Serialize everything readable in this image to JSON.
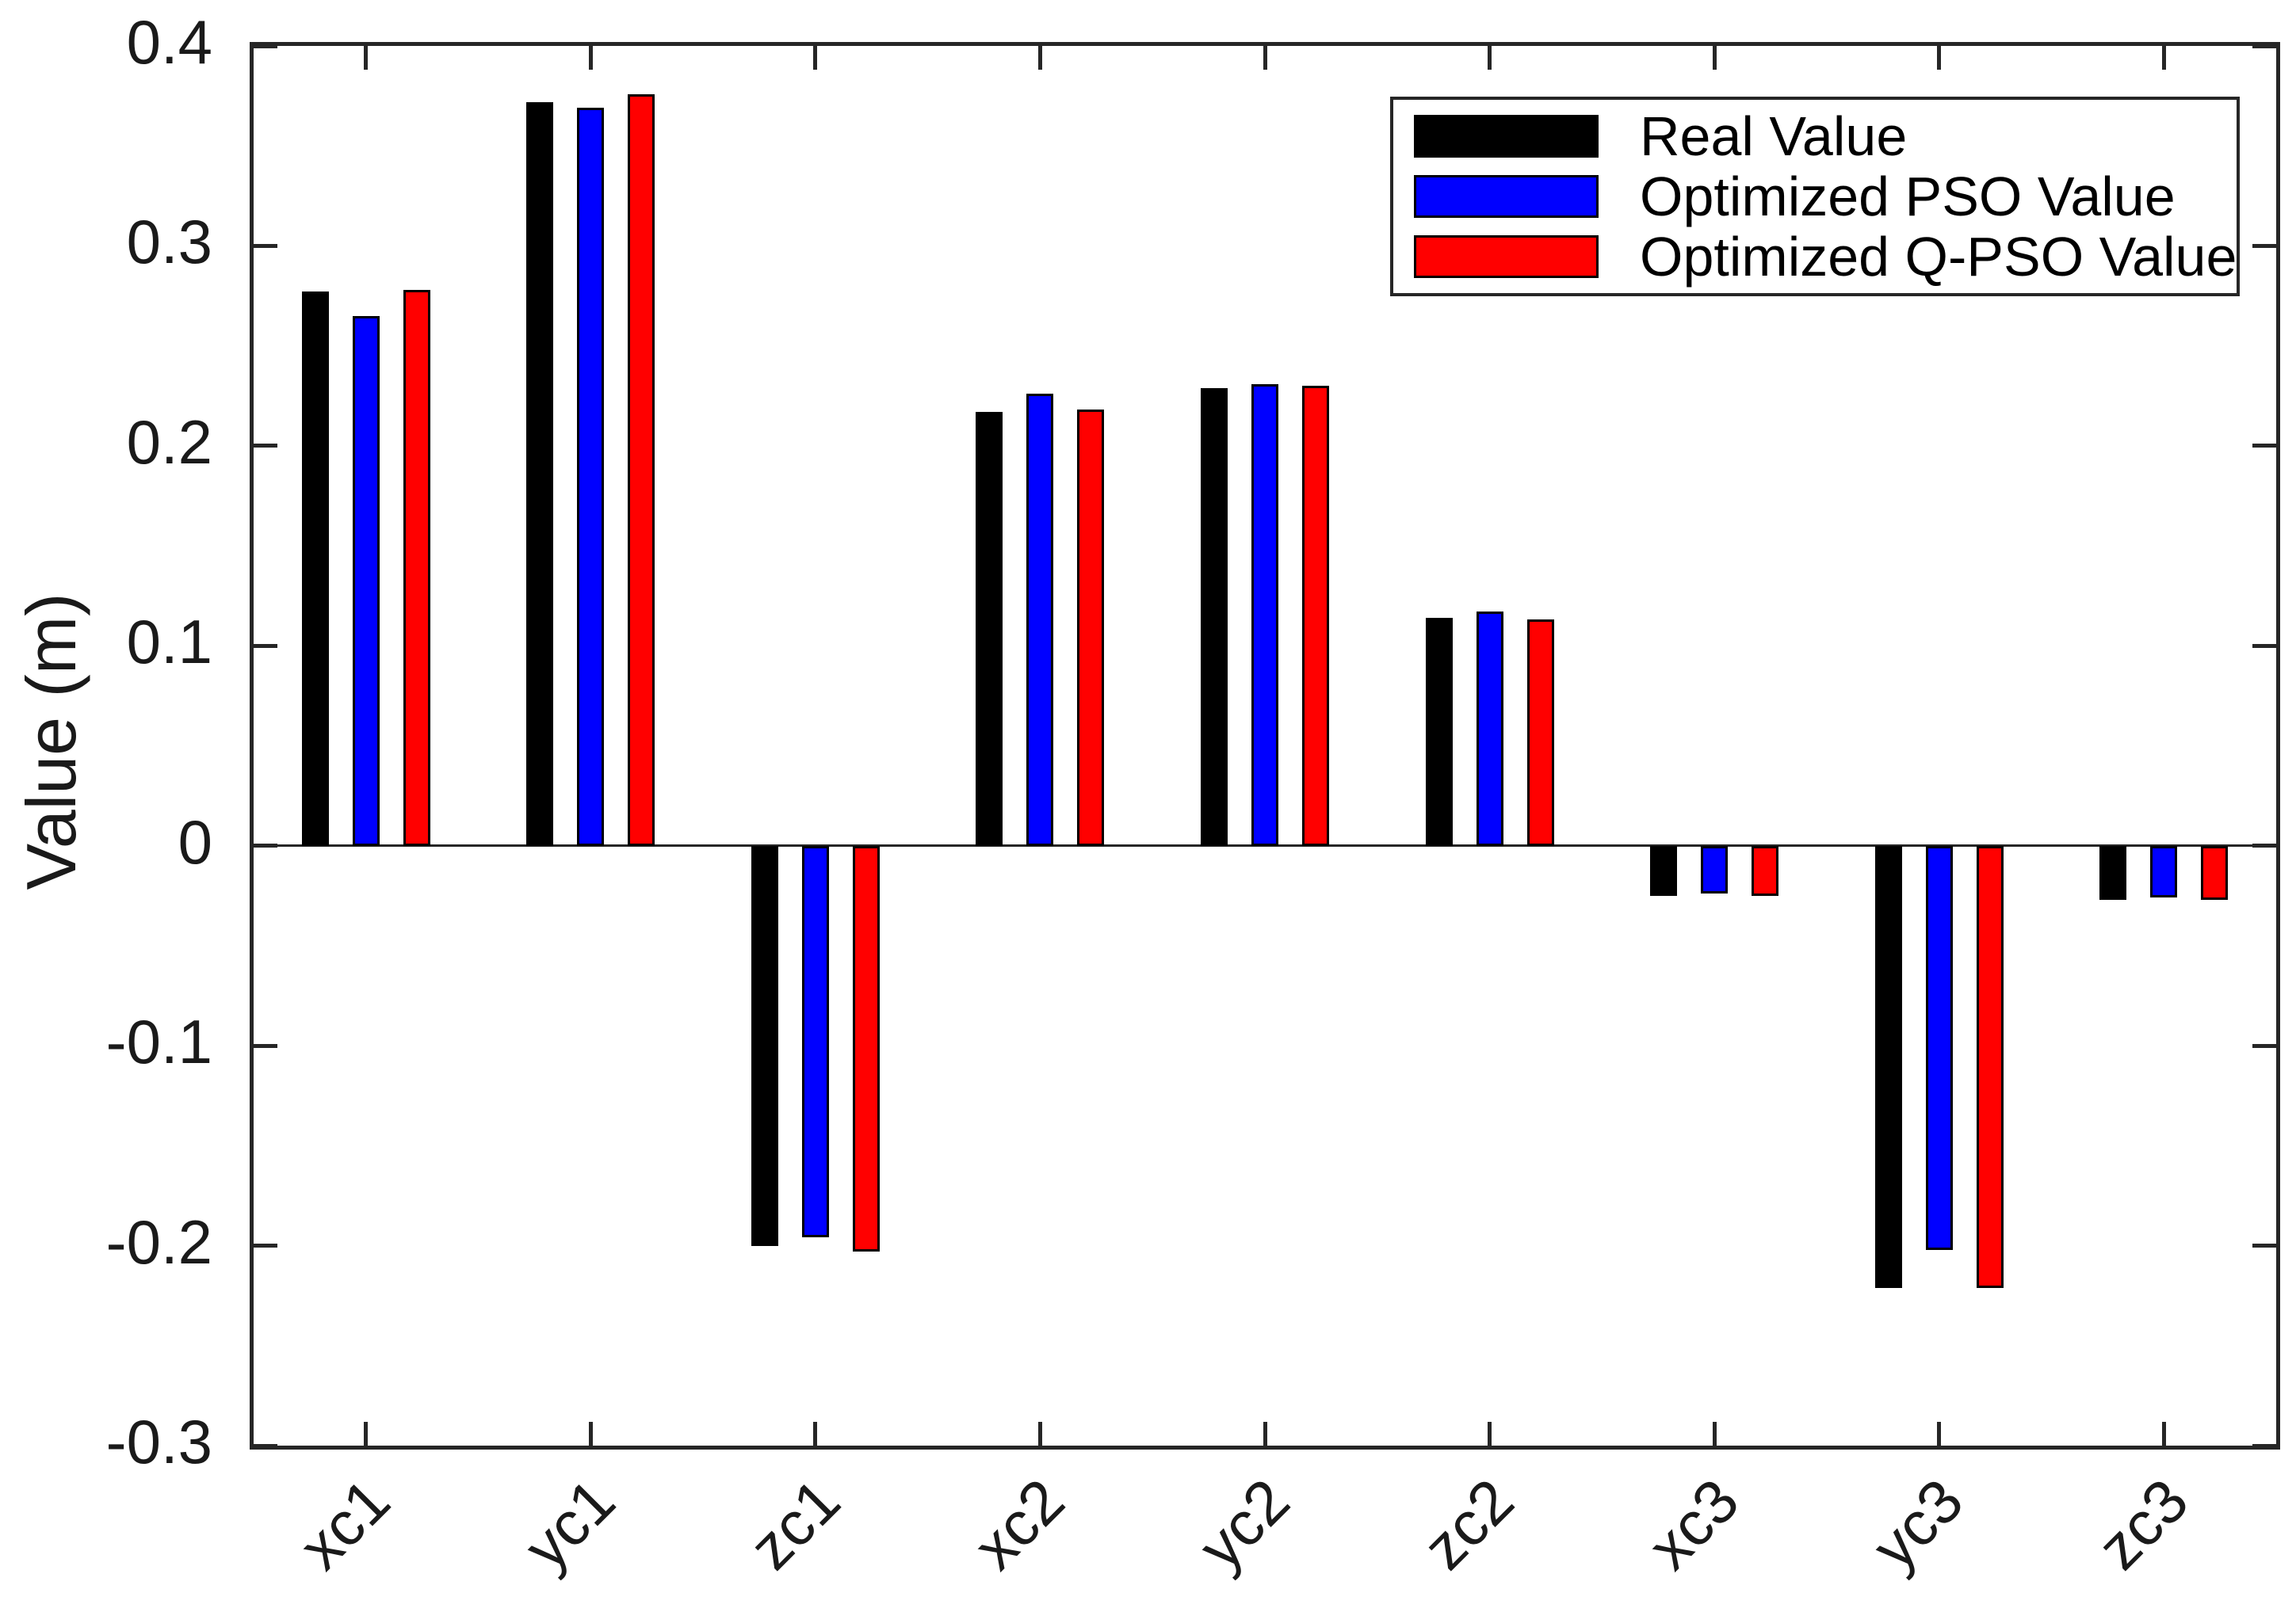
{
  "chart_data": {
    "type": "bar",
    "title": "",
    "xlabel": "",
    "ylabel": "Value (m)",
    "ylim": [
      -0.3,
      0.4
    ],
    "yticks": [
      0.4,
      0.3,
      0.2,
      0.1,
      0,
      -0.1,
      -0.2,
      -0.3
    ],
    "ytick_labels": [
      "0.4",
      "0.3",
      "0.2",
      "0.1",
      "0",
      "-0.1",
      "-0.2",
      "-0.3"
    ],
    "categories": [
      "xc1",
      "yc1",
      "zc1",
      "xc2",
      "yc2",
      "zc2",
      "xc3",
      "yc3",
      "zc3"
    ],
    "series": [
      {
        "name": "Real Value",
        "color": "#000000",
        "values": [
          0.277,
          0.372,
          -0.2,
          0.217,
          0.229,
          0.114,
          -0.025,
          -0.221,
          -0.027
        ]
      },
      {
        "name": "Optimized PSO Value",
        "color": "#0000ff",
        "values": [
          0.265,
          0.369,
          -0.196,
          0.226,
          0.231,
          0.117,
          -0.024,
          -0.202,
          -0.026
        ]
      },
      {
        "name": "Optimized Q-PSO Value",
        "color": "#ff0000",
        "values": [
          0.278,
          0.376,
          -0.203,
          0.218,
          0.23,
          0.113,
          -0.025,
          -0.221,
          -0.027
        ]
      }
    ],
    "legend_position": "upper-right",
    "grid": false,
    "axis_color": "#262626",
    "bar_edge_color": "#000000",
    "background_color": "#ffffff"
  }
}
